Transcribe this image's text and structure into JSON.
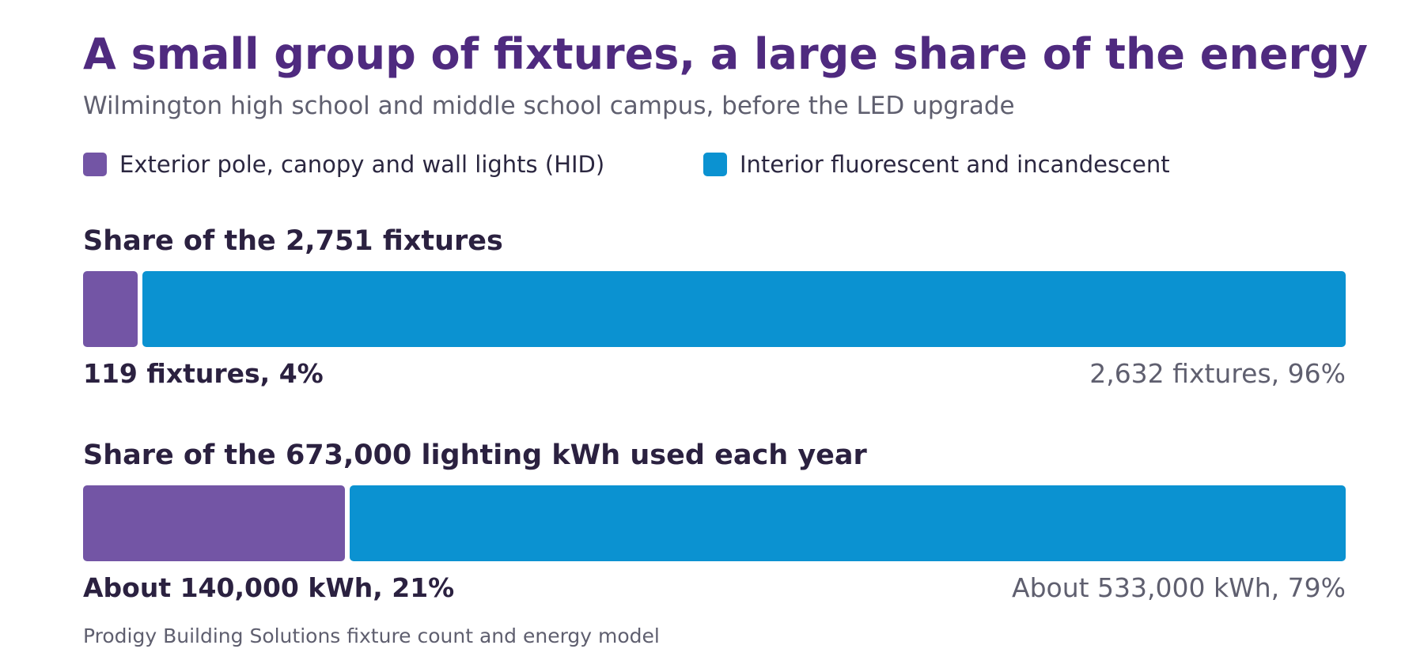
{
  "chart_data": {
    "type": "bar",
    "orientation": "horizontal",
    "stacked": "100-percent",
    "title": "A small group of fixtures, a large share of the energy",
    "subtitle": "Wilmington high school and middle school campus, before the LED upgrade",
    "source": "Prodigy Building Solutions fixture count and energy model",
    "legend_placement": "top",
    "grid": false,
    "series": [
      {
        "name": "Exterior pole, canopy and wall lights (HID)",
        "color": "#7355a5"
      },
      {
        "name": "Interior fluorescent and incandescent",
        "color": "#0b92d1"
      }
    ],
    "panels": [
      {
        "title": "Share of the 2,751 fixtures",
        "values": [
          119,
          2632
        ],
        "labels": [
          "119 fixtures, 4%",
          "2,632 fixtures, 96%"
        ]
      },
      {
        "title": "Share of the 673,000 lighting kWh used each year",
        "values": [
          140000,
          533000
        ],
        "labels": [
          "About 140,000 kWh, 21%",
          "About 533,000 kWh, 79%"
        ]
      }
    ]
  }
}
